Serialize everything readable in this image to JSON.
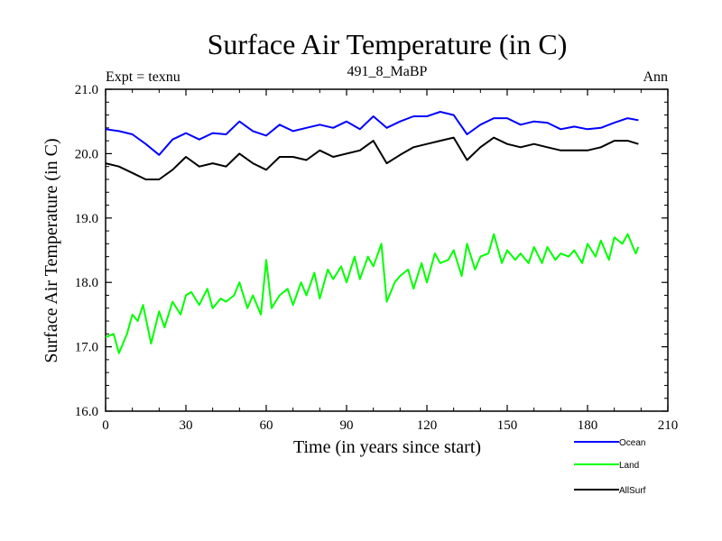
{
  "chart_data": {
    "type": "line",
    "title": "Surface Air Temperature (in C)",
    "subtitle": "491_8_MaBP",
    "left_annotation": "Expt = texnu",
    "right_annotation": "Ann",
    "xlabel": "Time (in years since start)",
    "ylabel": "Surface Air Temperature (in C)",
    "xlim": [
      0,
      210
    ],
    "ylim": [
      16.0,
      21.0
    ],
    "xticks": [
      0,
      30,
      60,
      90,
      120,
      150,
      180,
      210
    ],
    "yticks": [
      16.0,
      17.0,
      18.0,
      19.0,
      20.0,
      21.0
    ],
    "ytick_labels": [
      "16.0",
      "17.0",
      "18.0",
      "19.0",
      "20.0",
      "21.0"
    ],
    "grid": false,
    "legend_position": "bottom-right",
    "series": [
      {
        "name": "Ocean",
        "color": "#0000ff",
        "x": [
          0,
          5,
          10,
          15,
          20,
          25,
          30,
          35,
          40,
          45,
          50,
          55,
          60,
          65,
          70,
          75,
          80,
          85,
          90,
          95,
          100,
          105,
          110,
          115,
          120,
          125,
          130,
          135,
          140,
          145,
          150,
          155,
          160,
          165,
          170,
          175,
          180,
          185,
          190,
          195,
          199
        ],
        "y": [
          20.38,
          20.35,
          20.3,
          20.15,
          19.98,
          20.22,
          20.32,
          20.22,
          20.32,
          20.3,
          20.5,
          20.35,
          20.28,
          20.45,
          20.35,
          20.4,
          20.45,
          20.4,
          20.5,
          20.38,
          20.58,
          20.4,
          20.5,
          20.58,
          20.58,
          20.65,
          20.6,
          20.3,
          20.45,
          20.55,
          20.55,
          20.45,
          20.5,
          20.48,
          20.38,
          20.42,
          20.38,
          20.4,
          20.48,
          20.55,
          20.52
        ]
      },
      {
        "name": "Land",
        "color": "#00ff00",
        "x": [
          0,
          3,
          5,
          8,
          10,
          12,
          14,
          17,
          20,
          22,
          25,
          28,
          30,
          32,
          35,
          38,
          40,
          43,
          45,
          48,
          50,
          53,
          55,
          58,
          60,
          62,
          65,
          68,
          70,
          73,
          75,
          78,
          80,
          83,
          85,
          88,
          90,
          93,
          95,
          98,
          100,
          103,
          105,
          108,
          110,
          113,
          115,
          118,
          120,
          123,
          125,
          128,
          130,
          133,
          135,
          138,
          140,
          143,
          145,
          148,
          150,
          153,
          155,
          158,
          160,
          163,
          165,
          168,
          170,
          173,
          175,
          178,
          180,
          183,
          185,
          188,
          190,
          193,
          195,
          198,
          199
        ],
        "y": [
          17.15,
          17.2,
          16.9,
          17.2,
          17.5,
          17.4,
          17.65,
          17.05,
          17.55,
          17.3,
          17.7,
          17.5,
          17.8,
          17.85,
          17.65,
          17.9,
          17.6,
          17.75,
          17.7,
          17.8,
          18.0,
          17.6,
          17.8,
          17.5,
          18.35,
          17.6,
          17.8,
          17.9,
          17.65,
          18.0,
          17.8,
          18.15,
          17.75,
          18.2,
          18.05,
          18.25,
          18.0,
          18.4,
          18.05,
          18.4,
          18.25,
          18.6,
          17.7,
          18.0,
          18.1,
          18.2,
          17.9,
          18.3,
          18.0,
          18.45,
          18.3,
          18.35,
          18.5,
          18.1,
          18.6,
          18.2,
          18.4,
          18.45,
          18.75,
          18.3,
          18.5,
          18.35,
          18.45,
          18.3,
          18.55,
          18.3,
          18.55,
          18.35,
          18.45,
          18.4,
          18.5,
          18.3,
          18.6,
          18.4,
          18.65,
          18.35,
          18.7,
          18.6,
          18.75,
          18.45,
          18.55
        ]
      },
      {
        "name": "AllSurf",
        "color": "#000000",
        "x": [
          0,
          5,
          10,
          15,
          20,
          25,
          30,
          35,
          40,
          45,
          50,
          55,
          60,
          65,
          70,
          75,
          80,
          85,
          90,
          95,
          100,
          105,
          110,
          115,
          120,
          125,
          130,
          135,
          140,
          145,
          150,
          155,
          160,
          165,
          170,
          175,
          180,
          185,
          190,
          195,
          199
        ],
        "y": [
          19.85,
          19.8,
          19.7,
          19.6,
          19.6,
          19.75,
          19.95,
          19.8,
          19.85,
          19.8,
          20.0,
          19.85,
          19.75,
          19.95,
          19.95,
          19.9,
          20.05,
          19.95,
          20.0,
          20.05,
          20.2,
          19.85,
          19.98,
          20.1,
          20.15,
          20.2,
          20.25,
          19.9,
          20.1,
          20.25,
          20.15,
          20.1,
          20.15,
          20.1,
          20.05,
          20.05,
          20.05,
          20.1,
          20.2,
          20.2,
          20.15
        ]
      }
    ]
  }
}
